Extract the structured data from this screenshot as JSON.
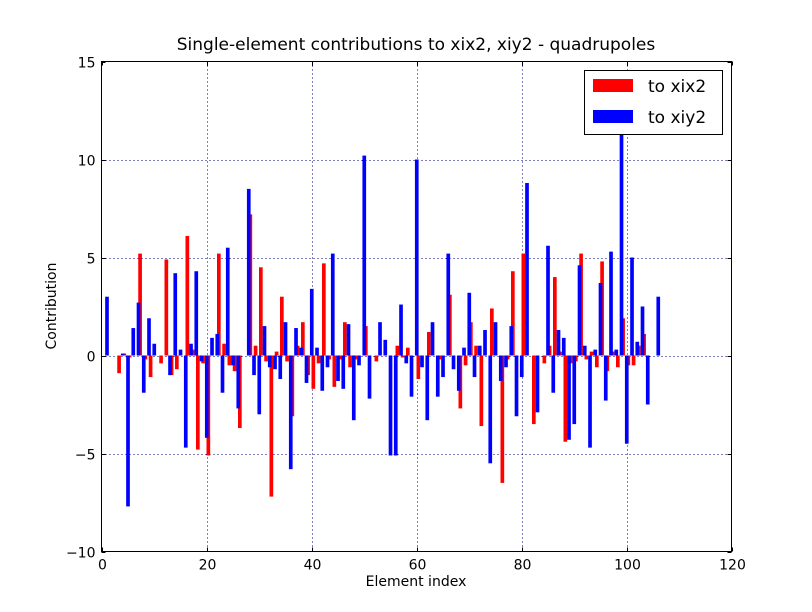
{
  "chart_data": {
    "type": "bar",
    "title": "Single-element contributions to xix2, xiy2 - quadrupoles",
    "xlabel": "Element index",
    "ylabel": "Contribution",
    "xlim": [
      0,
      120
    ],
    "ylim": [
      -10,
      15
    ],
    "xticks": [
      0,
      20,
      40,
      60,
      80,
      100,
      120
    ],
    "yticks": [
      -10,
      -5,
      0,
      5,
      10,
      15
    ],
    "xtick_labels": [
      "0",
      "20",
      "40",
      "60",
      "80",
      "100",
      "120"
    ],
    "ytick_labels": [
      "−10",
      "−5",
      "0",
      "5",
      "10",
      "15"
    ],
    "grid": true,
    "legend_position": "top-right",
    "bar_width": 0.7,
    "x": [
      0,
      1,
      2,
      3,
      4,
      5,
      6,
      7,
      8,
      9,
      10,
      11,
      12,
      13,
      14,
      15,
      16,
      17,
      18,
      19,
      20,
      21,
      22,
      23,
      24,
      25,
      26,
      27,
      28,
      29,
      30,
      31,
      32,
      33,
      34,
      35,
      36,
      37,
      38,
      39,
      40,
      41,
      42,
      43,
      44,
      45,
      46,
      47,
      48,
      49,
      50,
      51,
      52,
      53,
      54,
      55,
      56,
      57,
      58,
      59,
      60,
      61,
      62,
      63,
      64,
      65,
      66,
      67,
      68,
      69,
      70,
      71,
      72,
      73,
      74,
      75,
      76,
      77,
      78,
      79,
      80,
      81,
      82,
      83,
      84,
      85,
      86,
      87,
      88,
      89,
      90,
      91,
      92,
      93,
      94,
      95,
      96,
      97,
      98,
      99,
      100,
      101,
      102,
      103,
      104,
      105
    ],
    "series": [
      {
        "name": "to xix2",
        "color": "#ff0000",
        "offset": 0,
        "values": [
          0,
          0,
          0,
          -0.9,
          0.1,
          -0.1,
          0,
          5.2,
          -0.2,
          -1.1,
          0,
          -0.4,
          4.9,
          -1.0,
          -0.7,
          0,
          6.1,
          0.3,
          -4.8,
          -0.4,
          -5.1,
          0,
          5.2,
          0.6,
          -0.5,
          -0.8,
          -3.7,
          0,
          7.2,
          0.5,
          4.5,
          -0.3,
          -7.2,
          0.2,
          3.0,
          -0.3,
          -3.1,
          0.5,
          1.7,
          -1.0,
          -1.7,
          -0.4,
          4.7,
          -0.2,
          -1.6,
          -0.2,
          1.7,
          -0.6,
          -0.2,
          0,
          1.5,
          0,
          -0.3,
          0,
          0,
          0,
          0.5,
          -0.1,
          0.4,
          0,
          -1.2,
          0,
          1.2,
          0,
          -0.2,
          0,
          3.1,
          0,
          -2.7,
          -0.5,
          1.7,
          0.5,
          -3.6,
          0,
          2.4,
          0,
          -6.5,
          -0.2,
          4.3,
          0,
          5.2,
          0,
          -3.5,
          0,
          -0.4,
          0.5,
          4.0,
          0.2,
          -4.4,
          -0.4,
          -0.3,
          5.2,
          -0.2,
          0.2,
          -0.6,
          4.8,
          -0.8,
          0.2,
          -0.6,
          1.9,
          -0.5,
          -0.5,
          0.5,
          1.1,
          0,
          0
        ]
      },
      {
        "name": "to xiy2",
        "color": "#0000ff",
        "offset": 0.7,
        "values": [
          3.0,
          0,
          0,
          0.1,
          -7.7,
          1.4,
          2.7,
          -1.9,
          1.9,
          0.6,
          0,
          0,
          -1.0,
          4.2,
          0.3,
          -4.7,
          0.6,
          4.3,
          -0.3,
          -4.2,
          0.9,
          1.1,
          -1.9,
          5.5,
          -0.5,
          -2.7,
          0,
          8.5,
          -1.0,
          -3.0,
          1.5,
          -0.6,
          -0.7,
          -1.2,
          1.7,
          -5.8,
          1.4,
          0.4,
          -1.4,
          3.4,
          0.4,
          -1.8,
          -0.6,
          5.2,
          -1.3,
          -1.7,
          1.6,
          -3.3,
          -0.5,
          10.2,
          -2.2,
          0,
          1.7,
          0.8,
          -5.1,
          -5.1,
          2.6,
          -0.4,
          -2.1,
          10.0,
          -0.6,
          -3.3,
          1.7,
          -2.1,
          -1.1,
          5.2,
          -0.7,
          -1.8,
          0.4,
          3.2,
          -1.1,
          0.5,
          1.3,
          -5.5,
          1.7,
          -1.3,
          -0.6,
          1.5,
          -3.1,
          -1.1,
          8.8,
          0,
          -2.9,
          0,
          5.6,
          -1.9,
          1.3,
          0.9,
          -4.3,
          -3.5,
          4.6,
          0.5,
          -4.7,
          0.3,
          3.7,
          -2.3,
          5.3,
          0.3,
          11.5,
          -4.5,
          5.0,
          0.7,
          2.5,
          -2.5,
          0,
          3.0
        ]
      }
    ]
  }
}
